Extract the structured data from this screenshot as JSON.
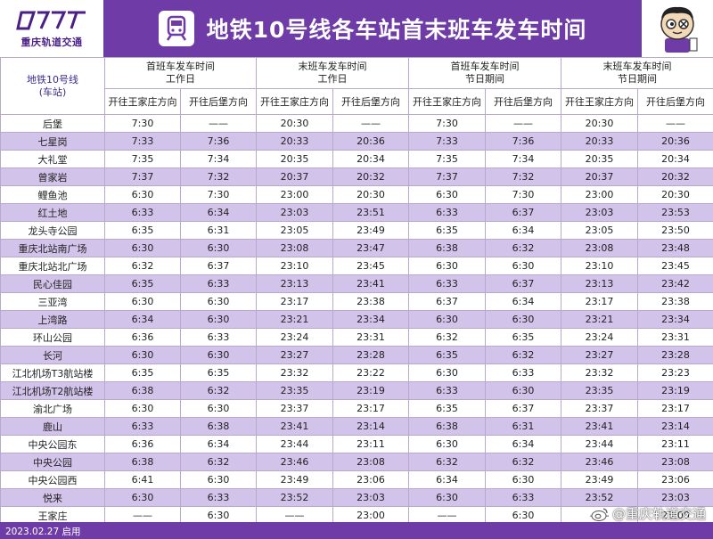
{
  "header": {
    "logo_text": "重庆轨道交通",
    "title": "地铁10号线各车站首末班车发车时间"
  },
  "columns": {
    "corner_line1": "地铁10号线",
    "corner_line2": "(车站)",
    "groups": [
      {
        "line1": "首班车发车时间",
        "line2": "工作日"
      },
      {
        "line1": "末班车发车时间",
        "line2": "工作日"
      },
      {
        "line1": "首班车发车时间",
        "line2": "节日期间"
      },
      {
        "line1": "末班车发车时间",
        "line2": "节日期间"
      }
    ],
    "directions": [
      "开往王家庄方向",
      "开往后堡方向",
      "开往王家庄方向",
      "开往后堡方向",
      "开往王家庄方向",
      "开往后堡方向",
      "开往王家庄方向",
      "开往后堡方向"
    ]
  },
  "rows": [
    {
      "station": "后堡",
      "times": [
        "7:30",
        "——",
        "20:30",
        "——",
        "7:30",
        "——",
        "20:30",
        "——"
      ]
    },
    {
      "station": "七星岗",
      "times": [
        "7:33",
        "7:36",
        "20:33",
        "20:36",
        "7:33",
        "7:36",
        "20:33",
        "20:36"
      ]
    },
    {
      "station": "大礼堂",
      "times": [
        "7:35",
        "7:34",
        "20:35",
        "20:34",
        "7:35",
        "7:34",
        "20:35",
        "20:34"
      ]
    },
    {
      "station": "曾家岩",
      "times": [
        "7:37",
        "7:32",
        "20:37",
        "20:32",
        "7:37",
        "7:32",
        "20:37",
        "20:32"
      ]
    },
    {
      "station": "鲤鱼池",
      "times": [
        "6:30",
        "7:30",
        "23:00",
        "20:30",
        "6:30",
        "7:30",
        "23:00",
        "20:30"
      ]
    },
    {
      "station": "红土地",
      "times": [
        "6:33",
        "6:34",
        "23:03",
        "23:51",
        "6:33",
        "6:37",
        "23:03",
        "23:53"
      ]
    },
    {
      "station": "龙头寺公园",
      "times": [
        "6:35",
        "6:31",
        "23:05",
        "23:49",
        "6:35",
        "6:34",
        "23:05",
        "23:50"
      ]
    },
    {
      "station": "重庆北站南广场",
      "times": [
        "6:30",
        "6:30",
        "23:08",
        "23:47",
        "6:38",
        "6:32",
        "23:08",
        "23:48"
      ]
    },
    {
      "station": "重庆北站北广场",
      "times": [
        "6:32",
        "6:37",
        "23:10",
        "23:45",
        "6:30",
        "6:30",
        "23:10",
        "23:45"
      ]
    },
    {
      "station": "民心佳园",
      "times": [
        "6:35",
        "6:33",
        "23:13",
        "23:41",
        "6:33",
        "6:37",
        "23:13",
        "23:42"
      ]
    },
    {
      "station": "三亚湾",
      "times": [
        "6:30",
        "6:30",
        "23:17",
        "23:38",
        "6:37",
        "6:34",
        "23:17",
        "23:38"
      ]
    },
    {
      "station": "上湾路",
      "times": [
        "6:34",
        "6:30",
        "23:21",
        "23:34",
        "6:30",
        "6:30",
        "23:21",
        "23:34"
      ]
    },
    {
      "station": "环山公园",
      "times": [
        "6:36",
        "6:33",
        "23:24",
        "23:31",
        "6:32",
        "6:35",
        "23:24",
        "23:31"
      ]
    },
    {
      "station": "长河",
      "times": [
        "6:30",
        "6:30",
        "23:27",
        "23:28",
        "6:35",
        "6:32",
        "23:27",
        "23:28"
      ]
    },
    {
      "station": "江北机场T3航站楼",
      "times": [
        "6:35",
        "6:35",
        "23:32",
        "23:22",
        "6:30",
        "6:33",
        "23:32",
        "23:23"
      ]
    },
    {
      "station": "江北机场T2航站楼",
      "times": [
        "6:38",
        "6:32",
        "23:35",
        "23:19",
        "6:33",
        "6:30",
        "23:35",
        "23:19"
      ]
    },
    {
      "station": "渝北广场",
      "times": [
        "6:30",
        "6:30",
        "23:37",
        "23:17",
        "6:35",
        "6:37",
        "23:37",
        "23:17"
      ]
    },
    {
      "station": "鹿山",
      "times": [
        "6:33",
        "6:38",
        "23:41",
        "23:14",
        "6:38",
        "6:31",
        "23:41",
        "23:14"
      ]
    },
    {
      "station": "中央公园东",
      "times": [
        "6:36",
        "6:34",
        "23:44",
        "23:11",
        "6:30",
        "6:34",
        "23:44",
        "23:11"
      ]
    },
    {
      "station": "中央公园",
      "times": [
        "6:38",
        "6:32",
        "23:46",
        "23:08",
        "6:32",
        "6:32",
        "23:46",
        "23:08"
      ]
    },
    {
      "station": "中央公园西",
      "times": [
        "6:41",
        "6:30",
        "23:49",
        "23:06",
        "6:34",
        "6:30",
        "23:49",
        "23:06"
      ]
    },
    {
      "station": "悦来",
      "times": [
        "6:30",
        "6:33",
        "23:52",
        "23:03",
        "6:30",
        "6:33",
        "23:52",
        "23:03"
      ]
    },
    {
      "station": "王家庄",
      "times": [
        "——",
        "6:30",
        "——",
        "23:00",
        "——",
        "6:30",
        "——",
        "23:00"
      ]
    }
  ],
  "footer": {
    "date_text": "2023.02.27 启用",
    "watermark_text": "@重庆轨道交通"
  },
  "colors": {
    "brand_purple": "#6f3ba6",
    "row_band": "#d2c3ea"
  },
  "icons": [
    "metro-logo-icon",
    "train-badge-icon",
    "mascot-icon",
    "weibo-icon"
  ]
}
